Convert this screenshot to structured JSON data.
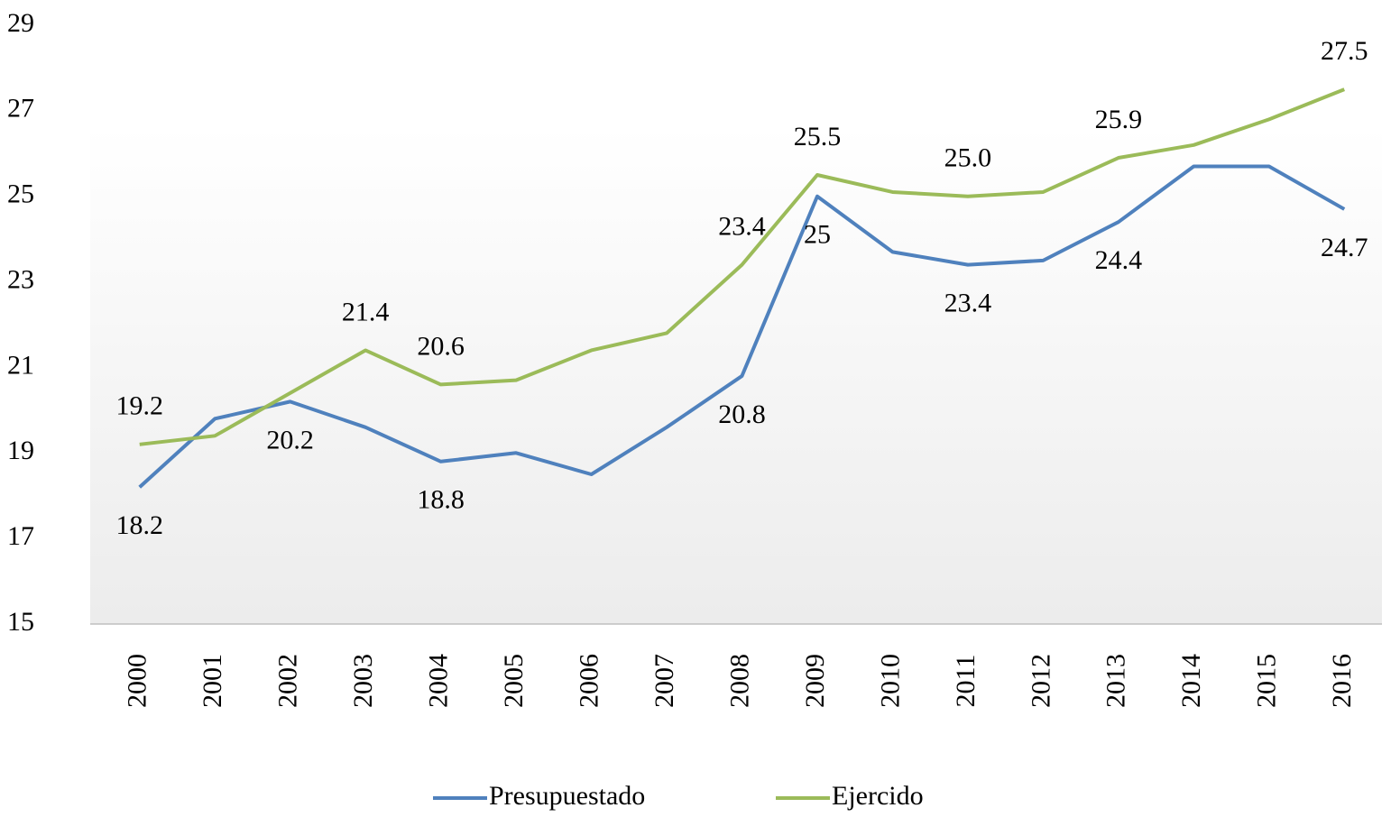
{
  "chart_data": {
    "type": "line",
    "categories": [
      "2000",
      "2001",
      "2002",
      "2003",
      "2004",
      "2005",
      "2006",
      "2007",
      "2008",
      "2009",
      "2010",
      "2011",
      "2012",
      "2013",
      "2014",
      "2015",
      "2016"
    ],
    "series": [
      {
        "name": "Presupuestado",
        "color": "#4f81bd",
        "values": [
          18.2,
          19.8,
          20.2,
          19.6,
          18.8,
          19.0,
          18.5,
          19.6,
          20.8,
          25,
          23.7,
          23.4,
          23.5,
          24.4,
          25.7,
          25.7,
          24.7
        ],
        "value_labels": [
          "18.2",
          null,
          "20.2",
          null,
          "18.8",
          null,
          null,
          null,
          "20.8",
          "25",
          null,
          "23.4",
          null,
          "24.4",
          null,
          null,
          "24.7"
        ]
      },
      {
        "name": "Ejercido",
        "color": "#9bbb59",
        "values": [
          19.2,
          19.4,
          20.4,
          21.4,
          20.6,
          20.7,
          21.4,
          21.8,
          23.4,
          25.5,
          25.1,
          25.0,
          25.1,
          25.9,
          26.2,
          26.8,
          27.5
        ],
        "value_labels": [
          "19.2",
          null,
          null,
          "21.4",
          "20.6",
          null,
          null,
          null,
          "23.4",
          "25.5",
          null,
          "25.0",
          null,
          "25.9",
          null,
          null,
          "27.5"
        ]
      }
    ],
    "ylim": [
      15,
      29
    ],
    "yticks": [
      15,
      17,
      19,
      21,
      23,
      25,
      27,
      29
    ],
    "grid": false,
    "legend": "bottom"
  }
}
